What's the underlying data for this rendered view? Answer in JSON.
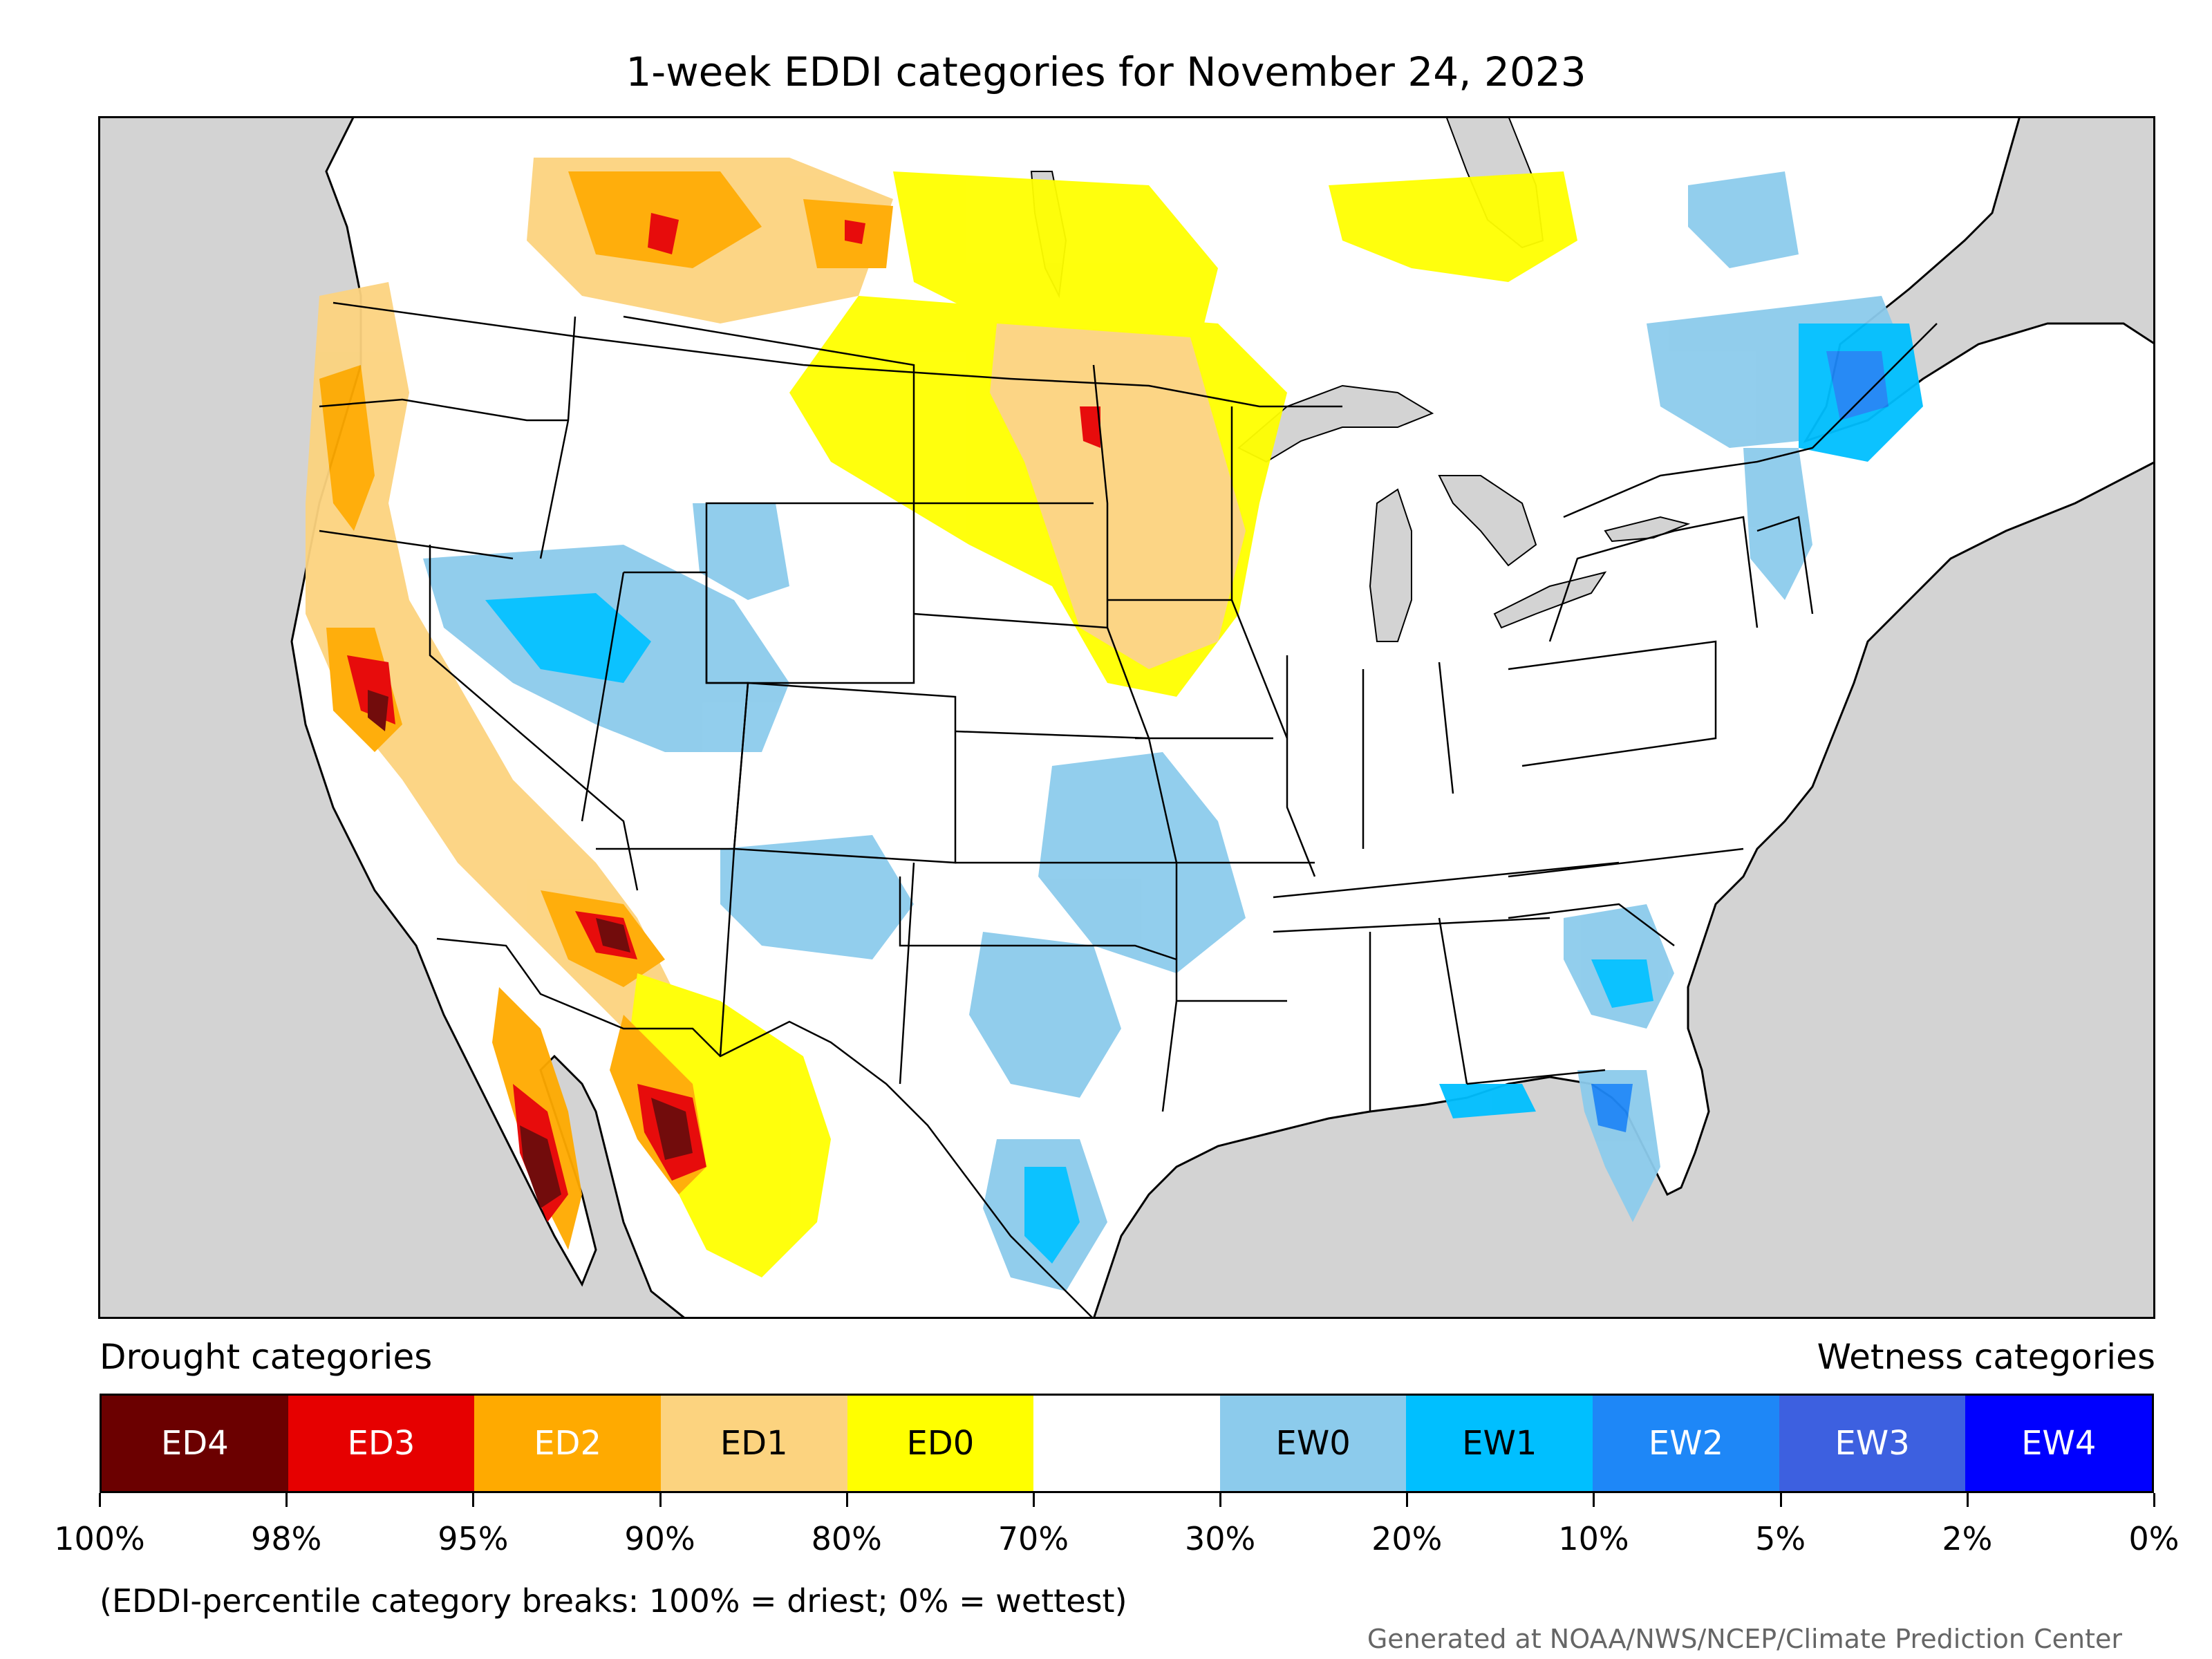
{
  "title": "1-week EDDI categories for November 24, 2023",
  "legend": {
    "drought_heading": "Drought categories",
    "wetness_heading": "Wetness categories",
    "categories": [
      {
        "label": "ED4",
        "color": "#6b0000",
        "text_color": "#ffffff"
      },
      {
        "label": "ED3",
        "color": "#e60000",
        "text_color": "#ffffff"
      },
      {
        "label": "ED2",
        "color": "#ffaa00",
        "text_color": "#ffffff"
      },
      {
        "label": "ED1",
        "color": "#fcd37f",
        "text_color": "#000000"
      },
      {
        "label": "ED0",
        "color": "#ffff00",
        "text_color": "#000000"
      },
      {
        "label": "",
        "color": "#ffffff",
        "text_color": "#000000"
      },
      {
        "label": "EW0",
        "color": "#8ccbec",
        "text_color": "#000000"
      },
      {
        "label": "EW1",
        "color": "#00bfff",
        "text_color": "#000000"
      },
      {
        "label": "EW2",
        "color": "#1e87f7",
        "text_color": "#ffffff"
      },
      {
        "label": "EW3",
        "color": "#3d60e0",
        "text_color": "#ffffff"
      },
      {
        "label": "EW4",
        "color": "#0000ff",
        "text_color": "#ffffff"
      }
    ],
    "breaks": [
      "100%",
      "98%",
      "95%",
      "90%",
      "80%",
      "70%",
      "30%",
      "20%",
      "10%",
      "5%",
      "2%",
      "0%"
    ],
    "note": "(EDDI-percentile category breaks: 100% = driest; 0% = wettest)"
  },
  "credit": "Generated at NOAA/NWS/NCEP/Climate Prediction Center",
  "map": {
    "background_color": "#d3d3d3",
    "land_color": "#ffffff",
    "border_color": "#000000"
  }
}
